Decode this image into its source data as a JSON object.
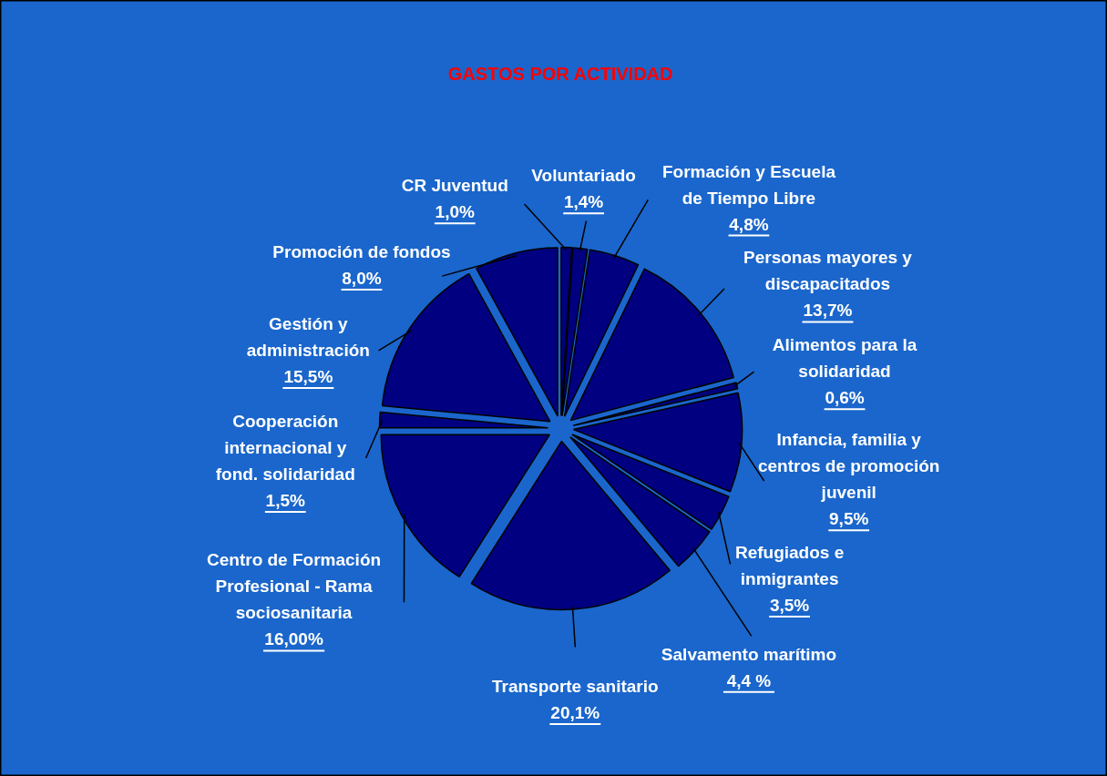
{
  "chart_data": {
    "type": "pie",
    "title": "GASTOS POR ACTIVIDAD",
    "categories": [
      "CR Juventud",
      "Voluntariado",
      "Formación y Escuela de Tiempo Libre",
      "Personas mayores y discapacitados",
      "Alimentos para la solidaridad",
      "Infancia, familia y centros de promoción juvenil",
      "Refugiados e inmigrantes",
      "Salvamento marítimo",
      "Transporte sanitario",
      "Centro de Formación Profesional - Rama sociosanitaria",
      "Cooperación internacional y fond. solidaridad",
      "Gestión y administración",
      "Promoción de fondos"
    ],
    "values": [
      1.0,
      1.4,
      4.8,
      13.7,
      0.6,
      9.5,
      3.5,
      4.4,
      20.1,
      16.0,
      1.5,
      15.5,
      8.0
    ],
    "value_labels": [
      "1,0%",
      "1,4%",
      "4,8%",
      "13,7%",
      "0,6%",
      "9,5%",
      "3,5%",
      "4,4 %",
      "20,1%",
      "16,00%",
      "1,5%",
      "15,5%",
      "8,0%"
    ],
    "colors": [
      "#000080",
      "#000080",
      "#000080",
      "#000080",
      "#000080",
      "#000080",
      "#000080",
      "#000080",
      "#000080",
      "#000080",
      "#000080",
      "#000080",
      "#000080"
    ]
  }
}
